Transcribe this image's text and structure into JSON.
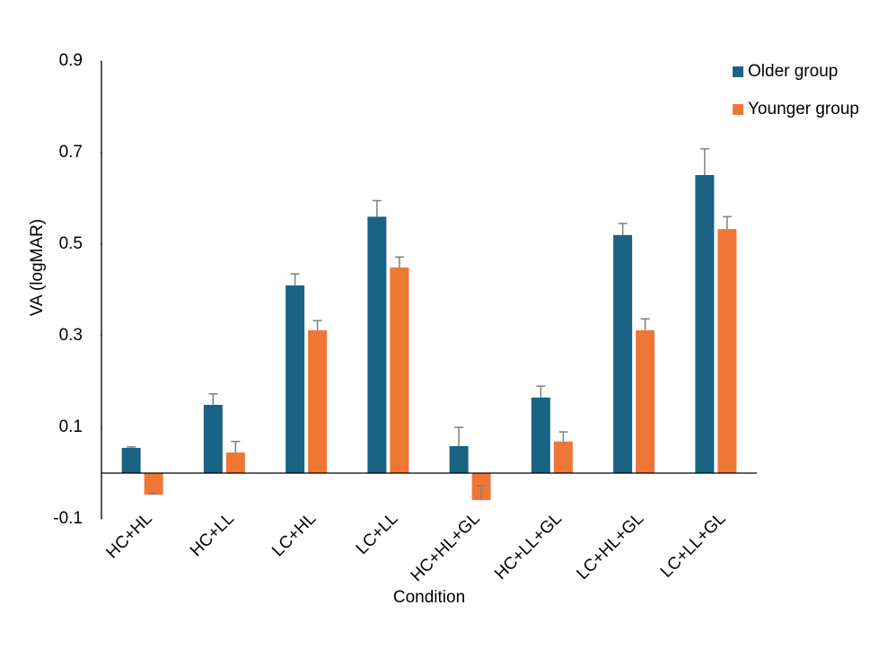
{
  "chart_data": {
    "type": "bar",
    "y_label": "VA (logMAR)",
    "x_label": "Condition",
    "categories": [
      "HC+HL",
      "HC+LL",
      "LC+HL",
      "LC+LL",
      "HC+HL+GL",
      "HC+LL+GL",
      "LC+HL+GL",
      "LC+LL+GL"
    ],
    "series": [
      {
        "name": "Older group",
        "color": "#1a6385",
        "values": [
          0.055,
          0.149,
          0.41,
          0.56,
          0.059,
          0.165,
          0.52,
          0.651
        ],
        "errors": [
          0.002,
          0.024,
          0.025,
          0.035,
          0.041,
          0.025,
          0.025,
          0.057
        ]
      },
      {
        "name": "Younger group",
        "color": "#ee7736",
        "values": [
          -0.047,
          0.045,
          0.312,
          0.449,
          -0.059,
          0.069,
          0.312,
          0.533
        ],
        "errors": [
          0.002,
          0.024,
          0.021,
          0.023,
          0.031,
          0.021,
          0.025,
          0.027
        ]
      }
    ],
    "ylim": [
      -0.1,
      0.9
    ],
    "yticks": [
      -0.1,
      0.1,
      0.3,
      0.5,
      0.7,
      0.9
    ],
    "legend": "top-right"
  }
}
